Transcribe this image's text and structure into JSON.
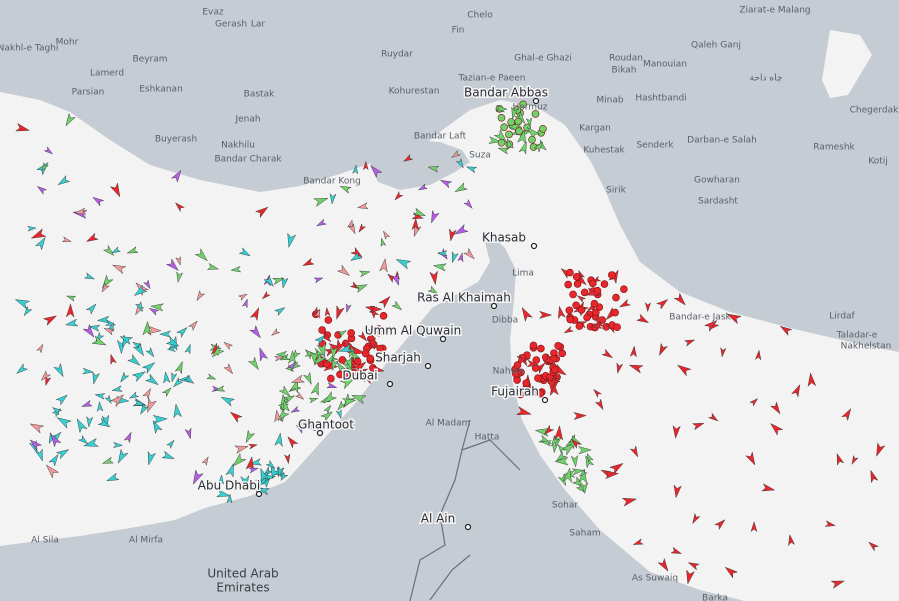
{
  "map": {
    "places": [
      {
        "label": "Evaz"
      },
      {
        "label": "Gerash"
      },
      {
        "label": "Lar"
      },
      {
        "label": "Chelo"
      },
      {
        "label": "Fin"
      },
      {
        "label": "Ziarat-e Malang"
      },
      {
        "label": "Mohr"
      },
      {
        "label": "Nakhl-e Taghi"
      },
      {
        "label": "Beyram"
      },
      {
        "label": "Ruydar"
      },
      {
        "label": "Tazian-e Paeen"
      },
      {
        "label": "Ghal-e Ghazi"
      },
      {
        "label": "Roudan"
      },
      {
        "label": "Bikah"
      },
      {
        "label": "Manouian"
      },
      {
        "label": "Qaleh Ganj"
      },
      {
        "label": "چاه داحة"
      },
      {
        "label": "Lamerd"
      },
      {
        "label": "Eshkanan"
      },
      {
        "label": "Bastak"
      },
      {
        "label": "Kohurestan"
      },
      {
        "label": "Parsian"
      },
      {
        "label": "Minab"
      },
      {
        "label": "Hashtbandi"
      },
      {
        "label": "Chegerdak"
      },
      {
        "label": "Bandar Abbas"
      },
      {
        "label": "Hormuz"
      },
      {
        "label": "Jenah"
      },
      {
        "label": "Bandar Laft"
      },
      {
        "label": "Kargan"
      },
      {
        "label": "Buyerash"
      },
      {
        "label": "Nakhilu"
      },
      {
        "label": "Darban-e Salah"
      },
      {
        "label": "Rameshk"
      },
      {
        "label": "Kuhestak"
      },
      {
        "label": "Senderk"
      },
      {
        "label": "Bandar Charak"
      },
      {
        "label": "Suza"
      },
      {
        "label": "Kotij"
      },
      {
        "label": "Gowharan"
      },
      {
        "label": "Bandar Kong"
      },
      {
        "label": "Sirik"
      },
      {
        "label": "Sardasht"
      },
      {
        "label": "Khasab"
      },
      {
        "label": "Lima"
      },
      {
        "label": "Ras Al Khaimah"
      },
      {
        "label": "Dibba"
      },
      {
        "label": "Bandar-e Jask"
      },
      {
        "label": "Lirdaf"
      },
      {
        "label": "Taladar-e"
      },
      {
        "label": "Nakhelstan"
      },
      {
        "label": "Umm Al Quwain"
      },
      {
        "label": "Sharjah"
      },
      {
        "label": "Dubai"
      },
      {
        "label": "Nahwa"
      },
      {
        "label": "Fujairah"
      },
      {
        "label": "Ghantoot"
      },
      {
        "label": "Al Madam"
      },
      {
        "label": "Hatta"
      },
      {
        "label": "Abu Dhabi"
      },
      {
        "label": "Sohar"
      },
      {
        "label": "Al Ain"
      },
      {
        "label": "Saham"
      },
      {
        "label": "Al Mirfa"
      },
      {
        "label": "Al Sila"
      },
      {
        "label": "As Suwaiq"
      },
      {
        "label": "Barka"
      }
    ],
    "country": {
      "line1": "United Arab",
      "line2": "Emirates"
    }
  }
}
